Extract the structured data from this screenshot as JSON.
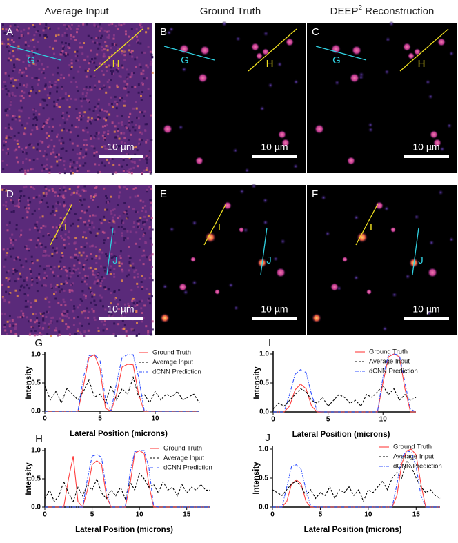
{
  "figure": {
    "columns": [
      {
        "text": "Average Input"
      },
      {
        "text": "Ground Truth"
      },
      {
        "text": "DEEP",
        "sup": "2",
        "rest": " Reconstruction"
      }
    ],
    "panels": [
      {
        "letter": "A",
        "scale_bar": "10 µm",
        "profiles": [
          "G",
          "H"
        ]
      },
      {
        "letter": "B",
        "scale_bar": "10 µm",
        "profiles": [
          "G",
          "H"
        ]
      },
      {
        "letter": "C",
        "scale_bar": "10 µm",
        "profiles": [
          "G",
          "H"
        ]
      },
      {
        "letter": "D",
        "scale_bar": "10 µm",
        "profiles": [
          "I",
          "J"
        ]
      },
      {
        "letter": "E",
        "scale_bar": "10 µm",
        "profiles": [
          "I",
          "J"
        ]
      },
      {
        "letter": "F",
        "scale_bar": "10 µm",
        "profiles": [
          "I",
          "J"
        ]
      }
    ]
  },
  "chart_data": [
    {
      "type": "line",
      "panel_label": "G",
      "x_label": "Lateral Position (microns)",
      "y_label": "Intensity",
      "x": [
        0,
        0.5,
        1,
        1.5,
        2,
        2.5,
        3,
        3.5,
        4,
        4.5,
        5,
        5.5,
        6,
        6.5,
        7,
        7.5,
        8,
        8.5,
        9,
        9.5,
        10,
        10.5,
        11,
        11.5,
        12,
        12.5,
        13,
        13.5,
        14
      ],
      "xlim": [
        0,
        14
      ],
      "xticks": [
        0,
        5,
        10
      ],
      "ylim": [
        0,
        1
      ],
      "yticks": [
        {
          "value": 0,
          "label": "0.0"
        },
        {
          "value": 0.5,
          "label": "0.5"
        },
        {
          "value": 1,
          "label": "1.0"
        }
      ],
      "legend": "upper right",
      "series": [
        {
          "name": "Ground Truth",
          "color": "#ff4040",
          "style": "solid",
          "values": [
            0,
            0,
            0,
            0,
            0,
            0,
            0,
            0.45,
            0.95,
            1.0,
            0.75,
            0.05,
            0,
            0.3,
            0.78,
            0.83,
            0.82,
            0.3,
            0,
            0,
            0,
            0,
            0,
            0,
            0,
            0,
            0,
            0,
            0
          ]
        },
        {
          "name": "Average Input",
          "color": "#000000",
          "style": "dashed",
          "values": [
            0.45,
            0.2,
            0.35,
            0.15,
            0.4,
            0.3,
            0.2,
            0.35,
            0.55,
            0.25,
            0.3,
            0.15,
            0.45,
            0.2,
            0.4,
            0.3,
            0.6,
            0.25,
            0.3,
            0.15,
            0.35,
            0.2,
            0.3,
            0.25,
            0.35,
            0.2,
            0.25,
            0.3,
            0.15
          ]
        },
        {
          "name": "dCNN Prediction",
          "color": "#3050ff",
          "style": "dashdot",
          "values": [
            0,
            0,
            0,
            0,
            0,
            0,
            0,
            0.6,
            0.98,
            1.0,
            0.9,
            0.2,
            0,
            0.5,
            0.95,
            1.0,
            1.0,
            0.6,
            0.02,
            0,
            0,
            0,
            0,
            0,
            0,
            0,
            0,
            0,
            0
          ]
        }
      ]
    },
    {
      "type": "line",
      "panel_label": "I",
      "x_label": "Lateral Position (microns)",
      "y_label": "Intensity",
      "x": [
        0,
        0.5,
        1,
        1.5,
        2,
        2.5,
        3,
        3.5,
        4,
        4.5,
        5,
        5.5,
        6,
        6.5,
        7,
        7.5,
        8,
        8.5,
        9,
        9.5,
        10,
        10.5,
        11,
        11.5,
        12,
        12.5,
        13
      ],
      "xlim": [
        0,
        13
      ],
      "xticks": [
        0,
        5,
        10
      ],
      "ylim": [
        0,
        1
      ],
      "yticks": [
        {
          "value": 0,
          "label": "0.0"
        },
        {
          "value": 0.5,
          "label": "0.5"
        },
        {
          "value": 1,
          "label": "1.0"
        }
      ],
      "legend": "upper right",
      "series": [
        {
          "name": "Ground Truth",
          "color": "#ff4040",
          "style": "solid",
          "values": [
            0,
            0,
            0,
            0.1,
            0.38,
            0.48,
            0.4,
            0.1,
            0,
            0,
            0,
            0,
            0,
            0,
            0,
            0,
            0,
            0,
            0,
            0,
            0.5,
            0.95,
            1.0,
            0.95,
            0.4,
            0,
            0
          ]
        },
        {
          "name": "Average Input",
          "color": "#000000",
          "style": "dashed",
          "values": [
            0.05,
            0.15,
            0.1,
            0.2,
            0.3,
            0.4,
            0.35,
            0.2,
            0.15,
            0.25,
            0.1,
            0.2,
            0.3,
            0.25,
            0.15,
            0.2,
            0.1,
            0.3,
            0.25,
            0.35,
            0.45,
            0.3,
            0.4,
            0.2,
            0.3,
            0.2,
            0.25
          ]
        },
        {
          "name": "dCNN Prediction",
          "color": "#3050ff",
          "style": "dashdot",
          "values": [
            0,
            0,
            0,
            0.3,
            0.65,
            0.73,
            0.68,
            0.3,
            0.02,
            0,
            0,
            0,
            0,
            0,
            0,
            0,
            0,
            0,
            0,
            0,
            0.6,
            0.98,
            1.0,
            0.98,
            0.5,
            0.05,
            0
          ]
        }
      ]
    },
    {
      "type": "line",
      "panel_label": "H",
      "x_label": "Lateral Position (microns)",
      "y_label": "Intensity",
      "x": [
        0,
        0.5,
        1,
        1.5,
        2,
        2.5,
        3,
        3.5,
        4,
        4.5,
        5,
        5.5,
        6,
        6.5,
        7,
        7.5,
        8,
        8.5,
        9,
        9.5,
        10,
        10.5,
        11,
        11.5,
        12,
        12.5,
        13,
        13.5,
        14,
        14.5,
        15,
        15.5,
        16,
        16.5,
        17,
        17.5
      ],
      "xlim": [
        0,
        17.5
      ],
      "xticks": [
        0,
        5,
        10,
        15
      ],
      "ylim": [
        0,
        1
      ],
      "yticks": [
        {
          "value": 0,
          "label": "0.0"
        },
        {
          "value": 0.5,
          "label": "0.5"
        },
        {
          "value": 1,
          "label": "1.0"
        }
      ],
      "legend": "upper right",
      "series": [
        {
          "name": "Ground Truth",
          "color": "#ff4040",
          "style": "solid",
          "values": [
            0,
            0,
            0,
            0,
            0,
            0.5,
            0.9,
            0.1,
            0,
            0.3,
            0.75,
            0.82,
            0.75,
            0.2,
            0,
            0,
            0,
            0,
            0.4,
            0.95,
            1.0,
            0.95,
            0.4,
            0,
            0,
            0,
            0,
            0,
            0,
            0,
            0,
            0,
            0,
            0,
            0,
            0
          ]
        },
        {
          "name": "Average Input",
          "color": "#000000",
          "style": "dashed",
          "values": [
            0.15,
            0.3,
            0.1,
            0.2,
            0.45,
            0.25,
            0.1,
            0.35,
            0.2,
            0.4,
            0.3,
            0.5,
            0.25,
            0.15,
            0.3,
            0.2,
            0.35,
            0.15,
            0.45,
            0.3,
            0.6,
            0.5,
            0.35,
            0.4,
            0.25,
            0.45,
            0.3,
            0.35,
            0.2,
            0.4,
            0.25,
            0.35,
            0.3,
            0.4,
            0.3,
            0.3
          ]
        },
        {
          "name": "dCNN Prediction",
          "color": "#3050ff",
          "style": "dashdot",
          "values": [
            0,
            0,
            0,
            0,
            0,
            0,
            0,
            0,
            0,
            0.5,
            0.9,
            0.93,
            0.88,
            0.3,
            0,
            0,
            0,
            0,
            0.6,
            0.98,
            1.0,
            1.0,
            0.7,
            0.02,
            0,
            0,
            0,
            0,
            0,
            0,
            0,
            0,
            0,
            0,
            0,
            0
          ]
        }
      ]
    },
    {
      "type": "line",
      "panel_label": "J",
      "x_label": "Lateral Position (microns)",
      "y_label": "Intensity",
      "x": [
        0,
        0.5,
        1,
        1.5,
        2,
        2.5,
        3,
        3.5,
        4,
        4.5,
        5,
        5.5,
        6,
        6.5,
        7,
        7.5,
        8,
        8.5,
        9,
        9.5,
        10,
        10.5,
        11,
        11.5,
        12,
        12.5,
        13,
        13.5,
        14,
        14.5,
        15,
        15.5,
        16,
        16.5,
        17,
        17.5
      ],
      "xlim": [
        0,
        17.5
      ],
      "xticks": [
        0,
        5,
        10,
        15
      ],
      "ylim": [
        0,
        1
      ],
      "yticks": [
        {
          "value": 0,
          "label": "0.0"
        },
        {
          "value": 0.5,
          "label": "0.5"
        },
        {
          "value": 1,
          "label": "1.0"
        }
      ],
      "legend": "upper right",
      "series": [
        {
          "name": "Ground Truth",
          "color": "#ff4040",
          "style": "solid",
          "values": [
            0,
            0,
            0,
            0.1,
            0.4,
            0.47,
            0.4,
            0.1,
            0,
            0,
            0,
            0,
            0,
            0,
            0,
            0,
            0,
            0,
            0,
            0,
            0,
            0,
            0,
            0,
            0,
            0,
            0.2,
            0.75,
            0.97,
            1.0,
            0.9,
            0.4,
            0,
            0,
            0,
            0
          ]
        },
        {
          "name": "Average Input",
          "color": "#000000",
          "style": "dashed",
          "values": [
            0.3,
            0.25,
            0.2,
            0.3,
            0.4,
            0.45,
            0.35,
            0.2,
            0.3,
            0.15,
            0.25,
            0.2,
            0.35,
            0.15,
            0.3,
            0.25,
            0.35,
            0.2,
            0.3,
            0.1,
            0.3,
            0.25,
            0.35,
            0.45,
            0.3,
            0.5,
            0.6,
            0.5,
            0.8,
            0.7,
            0.5,
            0.35,
            0.25,
            0.3,
            0.2,
            0.15
          ]
        },
        {
          "name": "dCNN Prediction",
          "color": "#3050ff",
          "style": "dashdot",
          "values": [
            0,
            0,
            0,
            0.35,
            0.7,
            0.73,
            0.65,
            0.3,
            0.02,
            0,
            0,
            0,
            0,
            0,
            0,
            0,
            0,
            0,
            0,
            0,
            0,
            0,
            0,
            0,
            0,
            0,
            0.4,
            0.85,
            0.97,
            0.95,
            0.7,
            0.2,
            0,
            0,
            0,
            0
          ]
        }
      ]
    }
  ]
}
